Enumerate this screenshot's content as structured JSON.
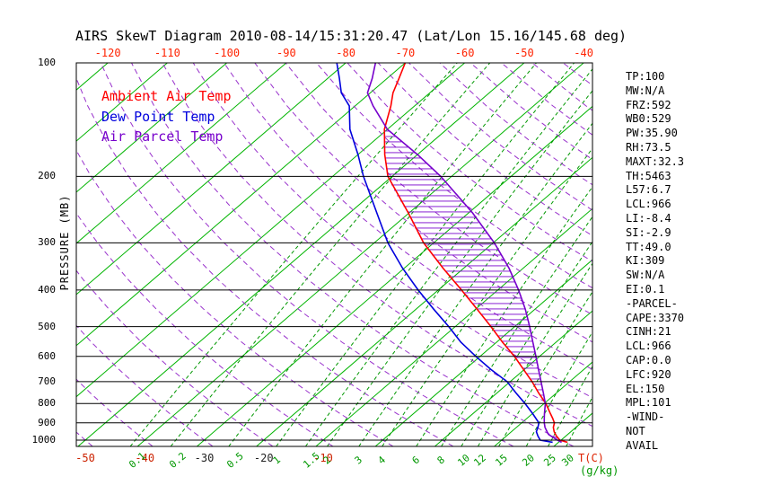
{
  "title": "AIRS SkewT Diagram 2010-08-14/15:31:20.47 (Lat/Lon 15.16/145.68 deg)",
  "legend": [
    {
      "label": "Ambient Air Temp",
      "color": "#ff0000"
    },
    {
      "label": "Dew Point Temp",
      "color": "#0000dd"
    },
    {
      "label": "Air Parcel Temp",
      "color": "#7700cc"
    }
  ],
  "axes": {
    "y_label": "PRESSURE (MB)",
    "pressure_ticks": [
      100,
      200,
      300,
      400,
      500,
      600,
      700,
      800,
      900,
      1000
    ],
    "top_temp_ticks": [
      -120,
      -110,
      -100,
      -90,
      -80,
      -70,
      -60,
      -50,
      -40
    ],
    "bottom_temp_ticks": [
      {
        "value": -50,
        "color": "#cc2200"
      },
      {
        "value": -40,
        "color": "#cc2200"
      },
      {
        "value": -30,
        "color": "#222222"
      },
      {
        "value": -20,
        "color": "#222222"
      },
      {
        "value": -10,
        "color": "#cc2200"
      }
    ],
    "temp_unit_label": "T(C)",
    "mix_unit_label": "(g/kg)"
  },
  "stats_panel": {
    "lines": [
      "TP:100",
      "MW:N/A",
      "FRZ:592",
      "WB0:529",
      "PW:35.90",
      "RH:73.5",
      "MAXT:32.3",
      "TH:5463",
      "L57:6.7",
      "LCL:966",
      "LI:-8.4",
      "SI:-2.9",
      "TT:49.0",
      "KI:309",
      "SW:N/A",
      "EI:0.1",
      "-PARCEL-",
      "CAPE:3370",
      "CINH:21",
      "LCL:966",
      "CAP:0.0",
      "LFC:920",
      "EL:150",
      "MPL:101",
      "-WIND-",
      "NOT",
      "AVAIL"
    ]
  },
  "chart_data": {
    "type": "line",
    "diagram": "skew-t-log-p",
    "title": "AIRS SkewT Diagram 2010-08-14/15:31:20.47 (Lat/Lon 15.16/145.68 deg)",
    "y_axis": {
      "label": "PRESSURE (MB)",
      "scale": "log",
      "range_mb": [
        100,
        1040
      ],
      "ticks": [
        100,
        200,
        300,
        400,
        500,
        600,
        700,
        800,
        900,
        1000
      ]
    },
    "x_axis": {
      "label": "T(C)",
      "top_tick_temps_c": [
        -120,
        -110,
        -100,
        -90,
        -80,
        -70,
        -60,
        -50,
        -40
      ],
      "bottom_tick_temps_c": [
        -50,
        -40,
        -30,
        -20,
        -10
      ]
    },
    "isotherms_c": {
      "min": -200,
      "max": 40,
      "step": 10
    },
    "mixing_ratios_gkg": [
      0.1,
      0.2,
      0.5,
      1,
      1.5,
      2,
      3,
      4,
      6,
      8,
      10,
      12,
      15,
      20,
      25,
      30
    ],
    "mixing_ratio_lines_extra_gkg": [
      40
    ],
    "dry_adiabats_c": {
      "min": -60,
      "max": 220,
      "step": 10
    },
    "colors": {
      "isotherm": "#00b400",
      "mixing": "#009700",
      "adiabat": "#9932cc",
      "hatch": "#7700cc"
    },
    "series": [
      {
        "name": "Ambient Air Temp",
        "color": "#ff0000",
        "units": [
          "mb",
          "C"
        ],
        "points": [
          [
            1013,
            31.5
          ],
          [
            1000,
            29.8
          ],
          [
            975,
            28.4
          ],
          [
            950,
            27.2
          ],
          [
            925,
            26.2
          ],
          [
            900,
            25.5
          ],
          [
            875,
            24.3
          ],
          [
            850,
            23.0
          ],
          [
            800,
            20.3
          ],
          [
            750,
            17.0
          ],
          [
            700,
            13.7
          ],
          [
            650,
            9.9
          ],
          [
            600,
            5.8
          ],
          [
            550,
            1.0
          ],
          [
            500,
            -4.0
          ],
          [
            450,
            -9.7
          ],
          [
            400,
            -16.1
          ],
          [
            350,
            -23.5
          ],
          [
            300,
            -31.7
          ],
          [
            250,
            -40.1
          ],
          [
            200,
            -50.7
          ],
          [
            175,
            -55.5
          ],
          [
            150,
            -60.5
          ],
          [
            130,
            -64.0
          ],
          [
            120,
            -66.2
          ],
          [
            110,
            -68.0
          ],
          [
            100,
            -70.0
          ]
        ]
      },
      {
        "name": "Dew Point Temp",
        "color": "#0000dd",
        "units": [
          "mb",
          "C"
        ],
        "points": [
          [
            1013,
            29.0
          ],
          [
            1000,
            26.5
          ],
          [
            975,
            25.3
          ],
          [
            950,
            24.2
          ],
          [
            925,
            23.6
          ],
          [
            900,
            22.9
          ],
          [
            850,
            20.0
          ],
          [
            800,
            16.8
          ],
          [
            750,
            13.2
          ],
          [
            700,
            9.5
          ],
          [
            650,
            4.4
          ],
          [
            600,
            -0.7
          ],
          [
            550,
            -6.0
          ],
          [
            500,
            -11.1
          ],
          [
            450,
            -17.0
          ],
          [
            400,
            -23.4
          ],
          [
            350,
            -30.3
          ],
          [
            300,
            -37.7
          ],
          [
            250,
            -45.4
          ],
          [
            200,
            -54.8
          ],
          [
            175,
            -60.0
          ],
          [
            150,
            -66.3
          ],
          [
            130,
            -71.0
          ],
          [
            120,
            -74.9
          ],
          [
            110,
            -78.0
          ],
          [
            100,
            -81.5
          ]
        ]
      },
      {
        "name": "Air Parcel Temp",
        "color": "#7700cc",
        "units": [
          "mb",
          "C"
        ],
        "points": [
          [
            1013,
            30.5
          ],
          [
            1000,
            29.4
          ],
          [
            966,
            26.8
          ],
          [
            950,
            26.0
          ],
          [
            925,
            24.8
          ],
          [
            900,
            23.8
          ],
          [
            875,
            22.9
          ],
          [
            850,
            22.0
          ],
          [
            800,
            20.2
          ],
          [
            750,
            17.8
          ],
          [
            700,
            15.2
          ],
          [
            650,
            12.4
          ],
          [
            600,
            9.4
          ],
          [
            550,
            6.1
          ],
          [
            500,
            2.5
          ],
          [
            450,
            -1.6
          ],
          [
            400,
            -6.5
          ],
          [
            350,
            -12.4
          ],
          [
            300,
            -19.8
          ],
          [
            250,
            -29.3
          ],
          [
            200,
            -41.8
          ],
          [
            175,
            -50.0
          ],
          [
            150,
            -60.0
          ],
          [
            130,
            -67.0
          ],
          [
            120,
            -70.5
          ],
          [
            110,
            -72.5
          ],
          [
            100,
            -75.0
          ]
        ]
      }
    ],
    "cape_hatch": {
      "between": [
        "Ambient Air Temp",
        "Air Parcel Temp"
      ],
      "from_mb": 920,
      "to_mb": 150
    }
  }
}
